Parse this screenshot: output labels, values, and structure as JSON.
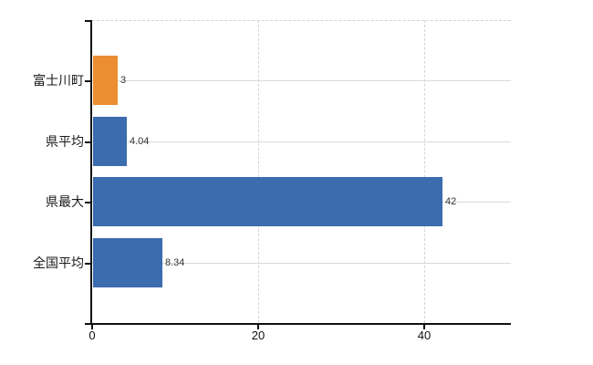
{
  "chart_data": {
    "type": "bar",
    "orientation": "horizontal",
    "title": "",
    "categories": [
      "富士川町",
      "県平均",
      "県最大",
      "全国平均"
    ],
    "values": [
      3,
      4.04,
      42,
      8.34
    ],
    "value_labels": [
      "3",
      "4.04",
      "42",
      "8.34"
    ],
    "bar_colors": [
      "#eb8e31",
      "#3b6cae",
      "#3b6cae",
      "#3b6cae"
    ],
    "x_ticks": [
      0,
      20,
      40
    ],
    "x_tick_labels": [
      "0",
      "20",
      "40"
    ],
    "xlim": [
      0,
      50.4
    ],
    "ylabel": "",
    "xlabel": "",
    "legend": "none",
    "grid": {
      "vertical": "dashed",
      "horizontal": "solid",
      "top_border": "dashed"
    },
    "colors": {
      "highlight_bar": "#eb8e31",
      "default_bar": "#3b6cae",
      "grid_line": "#d9dcd2",
      "axis_line": "#111111",
      "label_text": "#333333",
      "background": "#ffffff"
    }
  }
}
